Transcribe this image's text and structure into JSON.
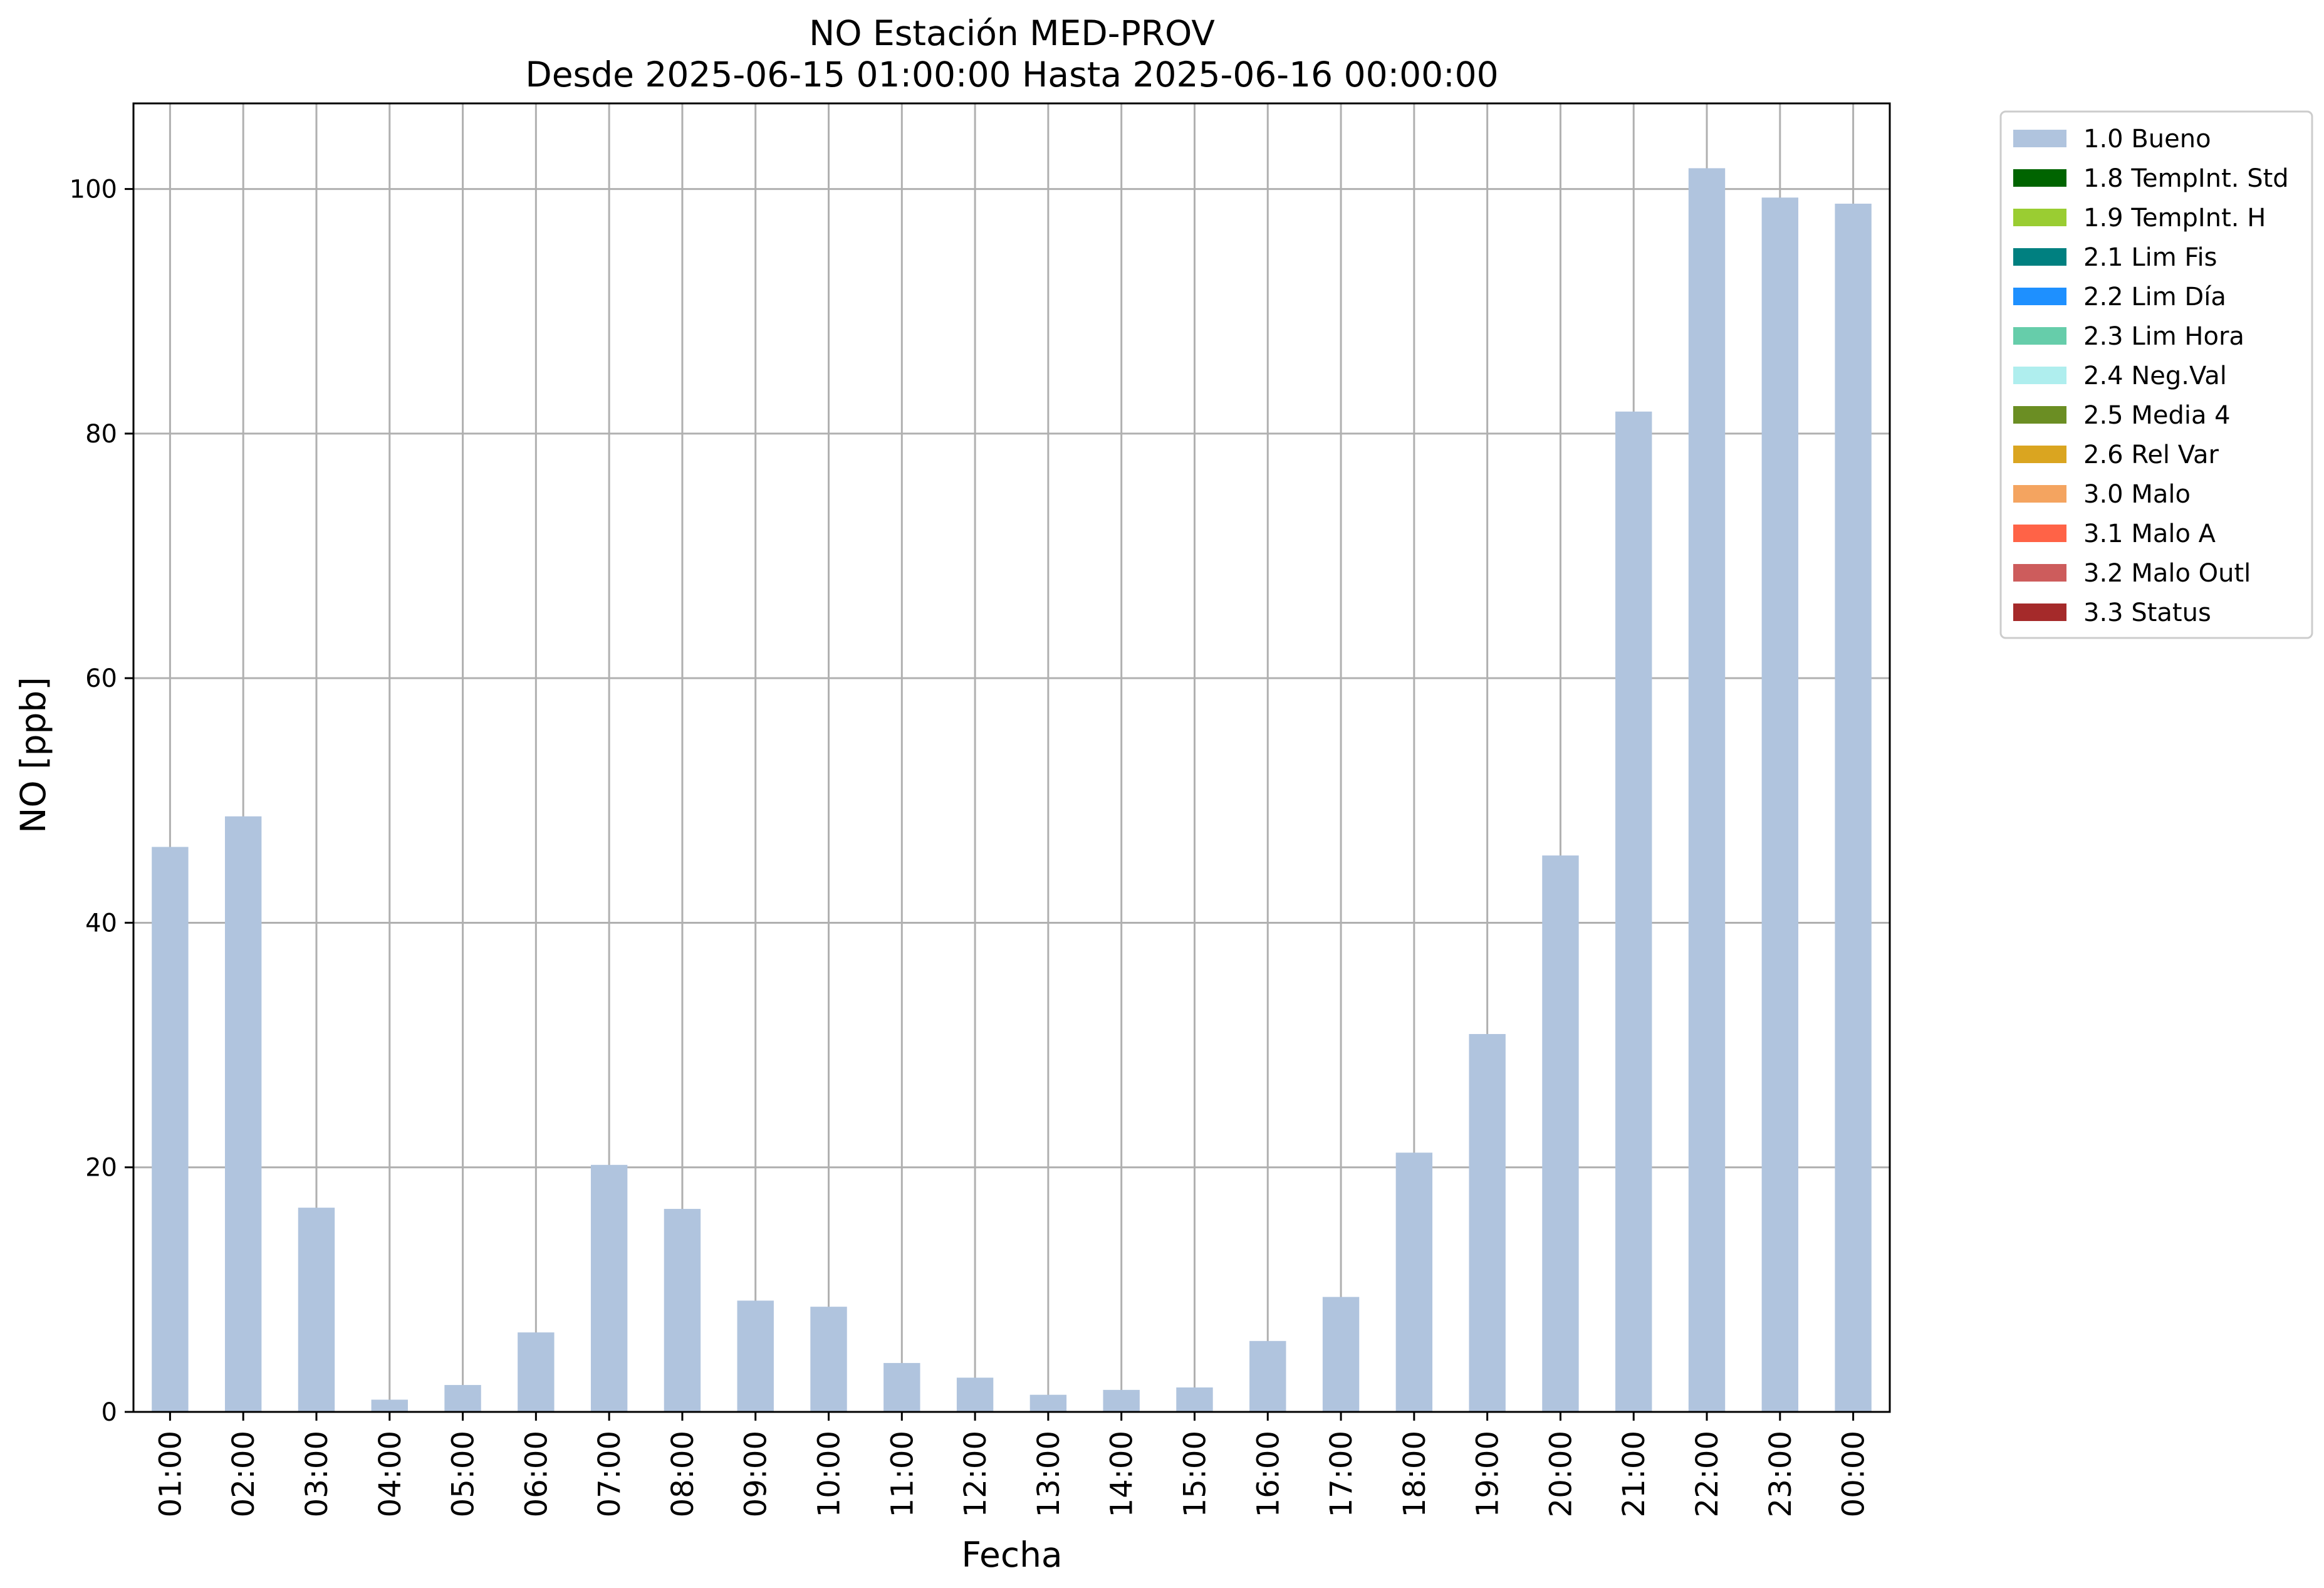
{
  "chart_data": {
    "type": "bar",
    "title": "NO Estación MED-PROV",
    "subtitle": "Desde 2025-06-15 01:00:00 Hasta 2025-06-16 00:00:00",
    "xlabel": "Fecha",
    "ylabel": "NO [ppb]",
    "ylim": [
      0,
      107
    ],
    "yticks": [
      0,
      20,
      40,
      60,
      80,
      100
    ],
    "grid": true,
    "legend_position": "outside-right",
    "categories": [
      "01:00",
      "02:00",
      "03:00",
      "04:00",
      "05:00",
      "06:00",
      "07:00",
      "08:00",
      "09:00",
      "10:00",
      "11:00",
      "12:00",
      "13:00",
      "14:00",
      "15:00",
      "16:00",
      "17:00",
      "18:00",
      "19:00",
      "20:00",
      "21:00",
      "22:00",
      "23:00",
      "00:00"
    ],
    "series": [
      {
        "name": "1.0 Bueno",
        "color": "#b0c4de",
        "values": [
          46.2,
          48.7,
          16.7,
          1.0,
          2.2,
          6.5,
          20.2,
          16.6,
          9.1,
          8.6,
          4.0,
          2.8,
          1.4,
          1.8,
          2.0,
          5.8,
          9.4,
          21.2,
          30.9,
          45.5,
          81.8,
          101.7,
          99.3,
          98.8
        ]
      }
    ],
    "legend": [
      {
        "label": "1.0 Bueno",
        "color": "#b0c4de"
      },
      {
        "label": "1.8 TempInt. Std",
        "color": "#006400"
      },
      {
        "label": "1.9 TempInt. H",
        "color": "#9acd32"
      },
      {
        "label": "2.1 Lim Fis",
        "color": "#008080"
      },
      {
        "label": "2.2 Lim Día",
        "color": "#1e90ff"
      },
      {
        "label": "2.3 Lim Hora",
        "color": "#66cdaa"
      },
      {
        "label": "2.4 Neg.Val",
        "color": "#afeeee"
      },
      {
        "label": "2.5 Media 4",
        "color": "#6b8e23"
      },
      {
        "label": "2.6 Rel Var",
        "color": "#daa520"
      },
      {
        "label": "3.0 Malo",
        "color": "#f4a460"
      },
      {
        "label": "3.1 Malo A",
        "color": "#ff6347"
      },
      {
        "label": "3.2 Malo Outl",
        "color": "#cd5c5c"
      },
      {
        "label": "3.3 Status",
        "color": "#a52a2a"
      }
    ]
  }
}
